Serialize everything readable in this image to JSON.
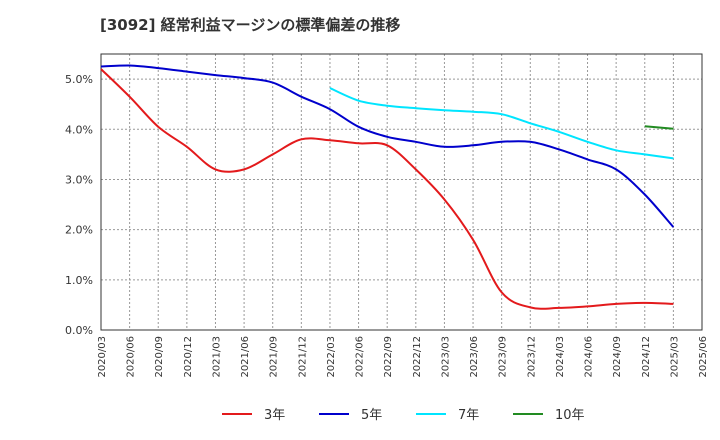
{
  "chart_data": {
    "type": "line",
    "title": "[3092]  経常利益マージンの標準偏差の推移",
    "xlabel": "",
    "ylabel": "",
    "ylim": [
      0,
      5.5
    ],
    "grid": true,
    "legend_position": "bottom",
    "y_ticks": [
      "0.0%",
      "1.0%",
      "2.0%",
      "3.0%",
      "4.0%",
      "5.0%"
    ],
    "y_tick_values": [
      0,
      1,
      2,
      3,
      4,
      5
    ],
    "x_ticks": [
      "2020/03",
      "2020/06",
      "2020/09",
      "2020/12",
      "2021/03",
      "2021/06",
      "2021/09",
      "2021/12",
      "2022/03",
      "2022/06",
      "2022/09",
      "2022/12",
      "2023/03",
      "2023/06",
      "2023/09",
      "2023/12",
      "2024/03",
      "2024/06",
      "2024/09",
      "2024/12",
      "2025/03",
      "2025/06"
    ],
    "series": [
      {
        "name": "3年",
        "color": "#e31a1c",
        "x": [
          "2020/03",
          "2020/06",
          "2020/09",
          "2020/12",
          "2021/03",
          "2021/06",
          "2021/09",
          "2021/12",
          "2022/03",
          "2022/06",
          "2022/09",
          "2022/12",
          "2023/03",
          "2023/06",
          "2023/09",
          "2023/12",
          "2024/03",
          "2024/06",
          "2024/09",
          "2024/12",
          "2025/03"
        ],
        "values": [
          5.2,
          4.65,
          4.05,
          3.65,
          3.2,
          3.2,
          3.5,
          3.8,
          3.78,
          3.72,
          3.68,
          3.2,
          2.6,
          1.8,
          0.75,
          0.45,
          0.44,
          0.47,
          0.52,
          0.54,
          0.52
        ]
      },
      {
        "name": "5年",
        "color": "#0000cc",
        "x": [
          "2020/03",
          "2020/06",
          "2020/09",
          "2020/12",
          "2021/03",
          "2021/06",
          "2021/09",
          "2021/12",
          "2022/03",
          "2022/06",
          "2022/09",
          "2022/12",
          "2023/03",
          "2023/06",
          "2023/09",
          "2023/12",
          "2024/03",
          "2024/06",
          "2024/09",
          "2024/12",
          "2025/03"
        ],
        "values": [
          5.25,
          5.27,
          5.22,
          5.15,
          5.08,
          5.02,
          4.93,
          4.65,
          4.4,
          4.05,
          3.85,
          3.75,
          3.65,
          3.68,
          3.75,
          3.75,
          3.6,
          3.4,
          3.2,
          2.7,
          2.05
        ]
      },
      {
        "name": "7年",
        "color": "#00e5ff",
        "x": [
          "2022/03",
          "2022/06",
          "2022/09",
          "2022/12",
          "2023/03",
          "2023/06",
          "2023/09",
          "2023/12",
          "2024/03",
          "2024/06",
          "2024/09",
          "2024/12",
          "2025/03"
        ],
        "values": [
          4.82,
          4.57,
          4.47,
          4.42,
          4.38,
          4.35,
          4.3,
          4.12,
          3.95,
          3.75,
          3.58,
          3.5,
          3.42
        ]
      },
      {
        "name": "10年",
        "color": "#228b22",
        "x": [
          "2024/12",
          "2025/03"
        ],
        "values": [
          4.06,
          4.01
        ]
      }
    ]
  }
}
